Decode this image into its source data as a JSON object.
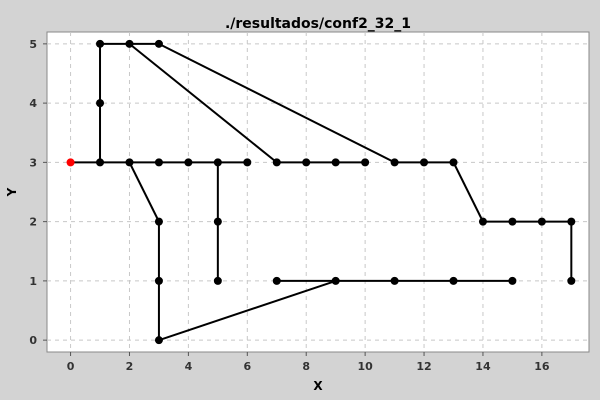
{
  "chart_data": {
    "type": "scatter",
    "title": "./resultados/conf2_32_1",
    "xlabel": "X",
    "ylabel": "Y",
    "xlim": [
      -0.8,
      17.6
    ],
    "ylim": [
      -0.2,
      5.2
    ],
    "xticks": [
      0,
      2,
      4,
      6,
      8,
      10,
      12,
      14,
      16
    ],
    "yticks": [
      0,
      1,
      2,
      3,
      4,
      5
    ],
    "grid": true,
    "colors": {
      "background": "#d3d3d3",
      "plot_background": "#ffffff",
      "node": "#000000",
      "start_node": "#ff0000",
      "edge": "#000000"
    },
    "start_point": [
      0,
      3
    ],
    "points": [
      [
        0,
        3
      ],
      [
        1,
        3
      ],
      [
        1,
        4
      ],
      [
        1,
        5
      ],
      [
        2,
        5
      ],
      [
        3,
        5
      ],
      [
        2,
        3
      ],
      [
        3,
        3
      ],
      [
        4,
        3
      ],
      [
        5,
        3
      ],
      [
        6,
        3
      ],
      [
        3,
        2
      ],
      [
        3,
        1
      ],
      [
        3,
        0
      ],
      [
        5,
        2
      ],
      [
        5,
        1
      ],
      [
        7,
        3
      ],
      [
        8,
        3
      ],
      [
        9,
        3
      ],
      [
        10,
        3
      ],
      [
        11,
        3
      ],
      [
        12,
        3
      ],
      [
        13,
        3
      ],
      [
        14,
        2
      ],
      [
        15,
        2
      ],
      [
        16,
        2
      ],
      [
        17,
        2
      ],
      [
        17,
        1
      ],
      [
        7,
        1
      ],
      [
        9,
        1
      ],
      [
        11,
        1
      ],
      [
        13,
        1
      ],
      [
        15,
        1
      ]
    ],
    "edges": [
      [
        [
          0,
          3
        ],
        [
          6,
          3
        ]
      ],
      [
        [
          1,
          3
        ],
        [
          1,
          5
        ]
      ],
      [
        [
          1,
          5
        ],
        [
          3,
          5
        ]
      ],
      [
        [
          2,
          5
        ],
        [
          7,
          3
        ]
      ],
      [
        [
          3,
          5
        ],
        [
          11,
          3
        ]
      ],
      [
        [
          7,
          3
        ],
        [
          10,
          3
        ]
      ],
      [
        [
          11,
          3
        ],
        [
          13,
          3
        ]
      ],
      [
        [
          13,
          3
        ],
        [
          14,
          2
        ]
      ],
      [
        [
          14,
          2
        ],
        [
          17,
          2
        ]
      ],
      [
        [
          17,
          2
        ],
        [
          17,
          1
        ]
      ],
      [
        [
          2,
          3
        ],
        [
          3,
          2
        ]
      ],
      [
        [
          3,
          2
        ],
        [
          3,
          0
        ]
      ],
      [
        [
          3,
          0
        ],
        [
          9,
          1
        ]
      ],
      [
        [
          7,
          1
        ],
        [
          15,
          1
        ]
      ],
      [
        [
          5,
          3
        ],
        [
          5,
          1
        ]
      ]
    ]
  }
}
